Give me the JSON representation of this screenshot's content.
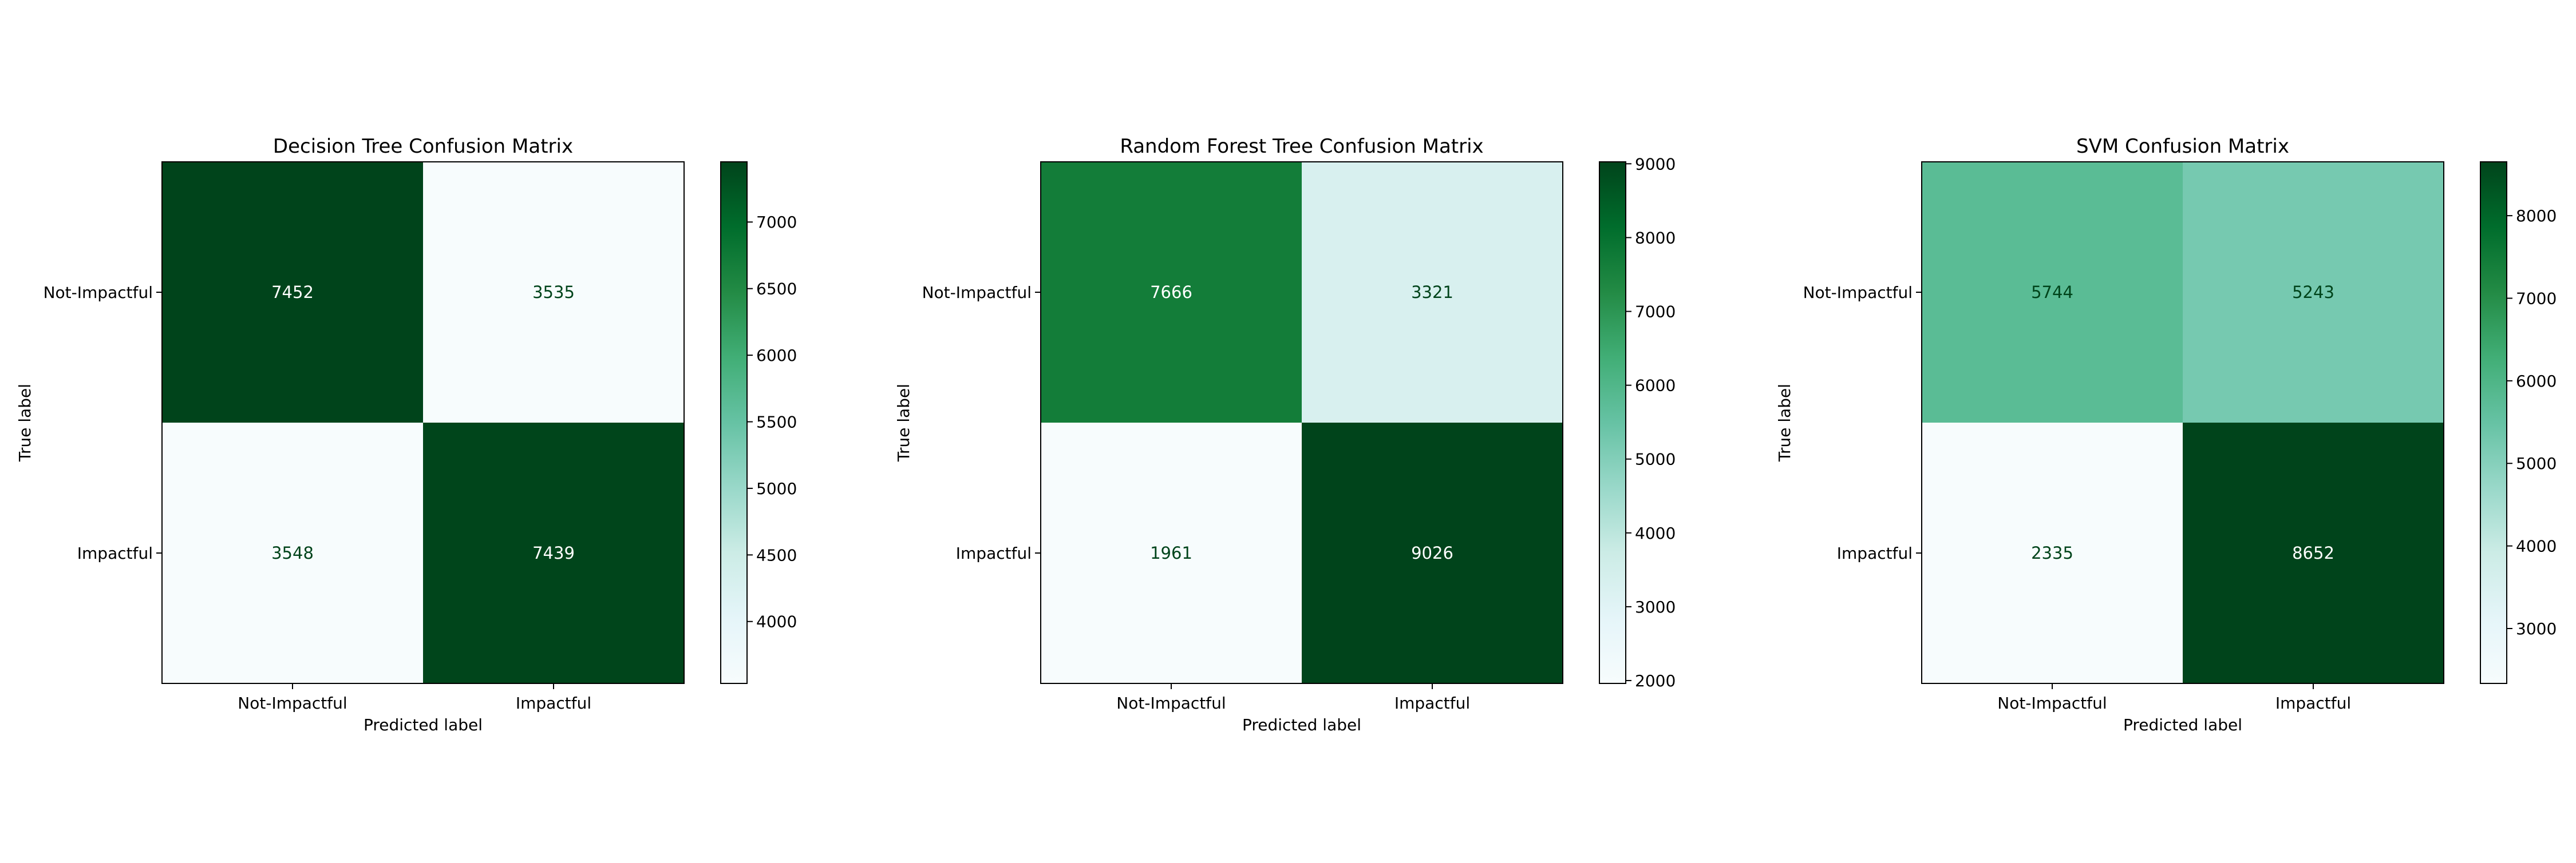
{
  "chart_data": [
    {
      "type": "heatmap",
      "title": "Decision Tree Confusion Matrix",
      "xlabel": "Predicted label",
      "ylabel": "True label",
      "x_categories": [
        "Not-Impactful",
        "Impactful"
      ],
      "y_categories": [
        "Not-Impactful",
        "Impactful"
      ],
      "values": [
        [
          7452,
          3535
        ],
        [
          3548,
          7439
        ]
      ],
      "colorbar": {
        "min": 3535,
        "max": 7452,
        "ticks": [
          4000,
          4500,
          5000,
          5500,
          6000,
          6500,
          7000
        ]
      },
      "colormap": "BuGn"
    },
    {
      "type": "heatmap",
      "title": "Random Forest Tree Confusion Matrix",
      "xlabel": "Predicted label",
      "ylabel": "True label",
      "x_categories": [
        "Not-Impactful",
        "Impactful"
      ],
      "y_categories": [
        "Not-Impactful",
        "Impactful"
      ],
      "values": [
        [
          7666,
          3321
        ],
        [
          1961,
          9026
        ]
      ],
      "colorbar": {
        "min": 1961,
        "max": 9026,
        "ticks": [
          2000,
          3000,
          4000,
          5000,
          6000,
          7000,
          8000,
          9000
        ]
      },
      "colormap": "BuGn"
    },
    {
      "type": "heatmap",
      "title": "SVM Confusion Matrix",
      "xlabel": "Predicted label",
      "ylabel": "True label",
      "x_categories": [
        "Not-Impactful",
        "Impactful"
      ],
      "y_categories": [
        "Not-Impactful",
        "Impactful"
      ],
      "values": [
        [
          5744,
          5243
        ],
        [
          2335,
          8652
        ]
      ],
      "colorbar": {
        "min": 2335,
        "max": 8652,
        "ticks": [
          3000,
          4000,
          5000,
          6000,
          7000,
          8000
        ]
      },
      "colormap": "BuGn"
    }
  ]
}
